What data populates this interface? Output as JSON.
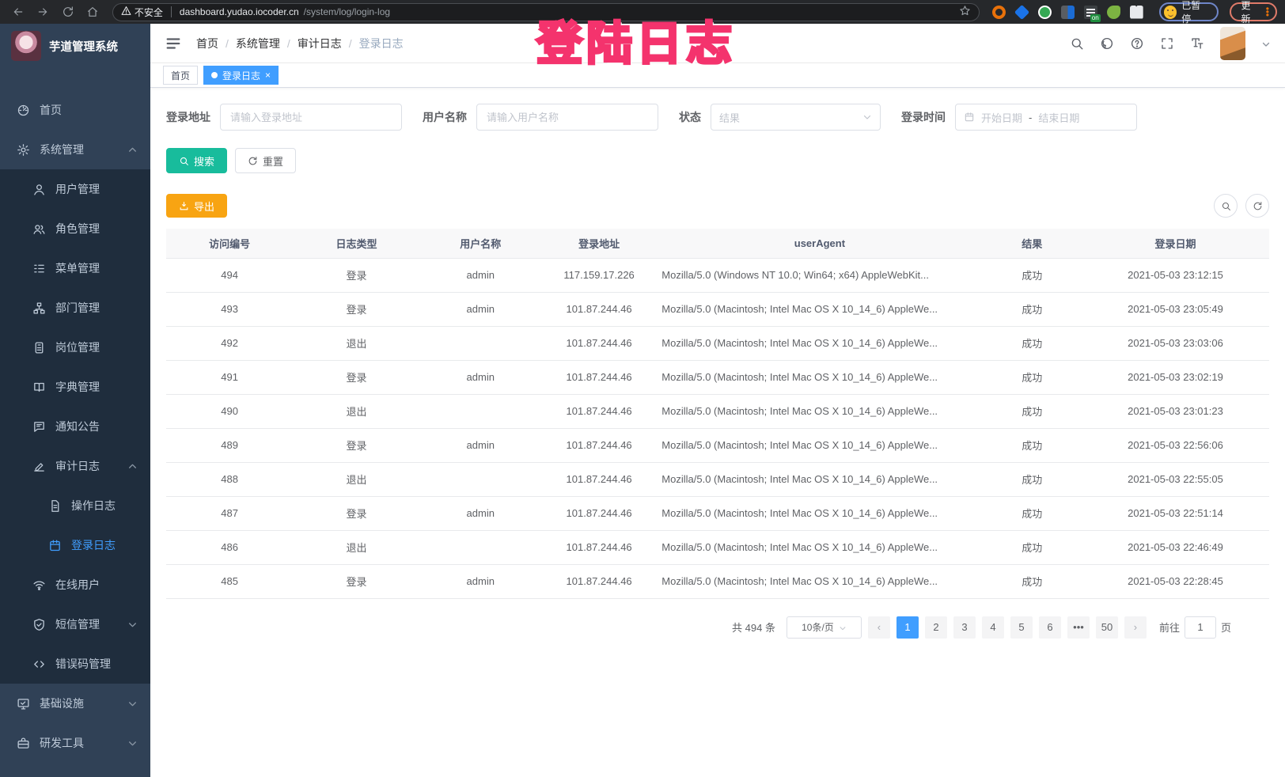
{
  "browser": {
    "security_label": "不安全",
    "url_host": "dashboard.yudao.iocoder.cn",
    "url_path": "/system/log/login-log",
    "extensions": [
      "orange-ring-extension-icon",
      "blue-gem-extension-icon",
      "green-circle-extension-icon",
      "grid-extension-icon",
      "list-on-extension-icon",
      "green-leaf-extension-icon",
      "puzzle-extension-icon"
    ],
    "paused_badge_label": "已暂停",
    "update_button_label": "更新"
  },
  "overlay_annotation": {
    "text": "登陆日志",
    "color": "#f4336d"
  },
  "sidebar": {
    "logo_title": "芋道管理系统",
    "items": [
      {
        "label": "首页",
        "icon": "dashboard-icon",
        "level": 1
      },
      {
        "label": "系统管理",
        "icon": "gear-icon",
        "level": 1,
        "chevron": "up"
      },
      {
        "label": "用户管理",
        "icon": "user-icon",
        "level": 2
      },
      {
        "label": "角色管理",
        "icon": "roles-icon",
        "level": 2
      },
      {
        "label": "菜单管理",
        "icon": "menu-tree-icon",
        "level": 2
      },
      {
        "label": "部门管理",
        "icon": "org-tree-icon",
        "level": 2
      },
      {
        "label": "岗位管理",
        "icon": "post-badge-icon",
        "level": 2
      },
      {
        "label": "字典管理",
        "icon": "dict-book-icon",
        "level": 2
      },
      {
        "label": "通知公告",
        "icon": "announcement-icon",
        "level": 2
      },
      {
        "label": "审计日志",
        "icon": "audit-log-icon",
        "level": 2,
        "chevron": "up"
      },
      {
        "label": "操作日志",
        "icon": "operation-log-icon",
        "level": 3
      },
      {
        "label": "登录日志",
        "icon": "login-log-icon",
        "level": 3,
        "active": true
      },
      {
        "label": "在线用户",
        "icon": "online-user-icon",
        "level": 2
      },
      {
        "label": "短信管理",
        "icon": "sms-shield-icon",
        "level": 2,
        "chevron": "down"
      },
      {
        "label": "错误码管理",
        "icon": "error-code-icon",
        "level": 2
      },
      {
        "label": "基础设施",
        "icon": "infra-monitor-icon",
        "level": 1,
        "chevron": "down"
      },
      {
        "label": "研发工具",
        "icon": "devtools-icon",
        "level": 1,
        "chevron": "down"
      }
    ]
  },
  "navbar": {
    "breadcrumb": [
      "首页",
      "系统管理",
      "审计日志",
      "登录日志"
    ],
    "right_icons": [
      "search-icon",
      "github-icon",
      "help-icon",
      "fullscreen-icon",
      "font-size-icon"
    ]
  },
  "tags": [
    {
      "label": "首页",
      "active": false,
      "closable": false
    },
    {
      "label": "登录日志",
      "active": true,
      "closable": true
    }
  ],
  "filters": {
    "login_address": {
      "label": "登录地址",
      "placeholder": "请输入登录地址"
    },
    "username": {
      "label": "用户名称",
      "placeholder": "请输入用户名称"
    },
    "status": {
      "label": "状态",
      "placeholder": "结果"
    },
    "login_time": {
      "label": "登录时间",
      "start_placeholder": "开始日期",
      "separator": "-",
      "end_placeholder": "结束日期"
    }
  },
  "actions": {
    "search_label": "搜索",
    "reset_label": "重置",
    "export_label": "导出"
  },
  "table": {
    "columns": [
      "访问编号",
      "日志类型",
      "用户名称",
      "登录地址",
      "userAgent",
      "结果",
      "登录日期"
    ],
    "rows": [
      [
        "494",
        "登录",
        "admin",
        "117.159.17.226",
        "Mozilla/5.0 (Windows NT 10.0; Win64; x64) AppleWebKit...",
        "成功",
        "2021-05-03 23:12:15"
      ],
      [
        "493",
        "登录",
        "admin",
        "101.87.244.46",
        "Mozilla/5.0 (Macintosh; Intel Mac OS X 10_14_6) AppleWe...",
        "成功",
        "2021-05-03 23:05:49"
      ],
      [
        "492",
        "退出",
        "",
        "101.87.244.46",
        "Mozilla/5.0 (Macintosh; Intel Mac OS X 10_14_6) AppleWe...",
        "成功",
        "2021-05-03 23:03:06"
      ],
      [
        "491",
        "登录",
        "admin",
        "101.87.244.46",
        "Mozilla/5.0 (Macintosh; Intel Mac OS X 10_14_6) AppleWe...",
        "成功",
        "2021-05-03 23:02:19"
      ],
      [
        "490",
        "退出",
        "",
        "101.87.244.46",
        "Mozilla/5.0 (Macintosh; Intel Mac OS X 10_14_6) AppleWe...",
        "成功",
        "2021-05-03 23:01:23"
      ],
      [
        "489",
        "登录",
        "admin",
        "101.87.244.46",
        "Mozilla/5.0 (Macintosh; Intel Mac OS X 10_14_6) AppleWe...",
        "成功",
        "2021-05-03 22:56:06"
      ],
      [
        "488",
        "退出",
        "",
        "101.87.244.46",
        "Mozilla/5.0 (Macintosh; Intel Mac OS X 10_14_6) AppleWe...",
        "成功",
        "2021-05-03 22:55:05"
      ],
      [
        "487",
        "登录",
        "admin",
        "101.87.244.46",
        "Mozilla/5.0 (Macintosh; Intel Mac OS X 10_14_6) AppleWe...",
        "成功",
        "2021-05-03 22:51:14"
      ],
      [
        "486",
        "退出",
        "",
        "101.87.244.46",
        "Mozilla/5.0 (Macintosh; Intel Mac OS X 10_14_6) AppleWe...",
        "成功",
        "2021-05-03 22:46:49"
      ],
      [
        "485",
        "登录",
        "admin",
        "101.87.244.46",
        "Mozilla/5.0 (Macintosh; Intel Mac OS X 10_14_6) AppleWe...",
        "成功",
        "2021-05-03 22:28:45"
      ]
    ]
  },
  "pagination": {
    "total_text": "共 494 条",
    "page_size_label": "10条/页",
    "pages": [
      "1",
      "2",
      "3",
      "4",
      "5",
      "6",
      "•••",
      "50"
    ],
    "active_page": "1",
    "goto_label": "前往",
    "goto_value": "1",
    "page_suffix_label": "页"
  },
  "theme": {
    "accent_blue": "#409eff",
    "sidebar_bg": "#304156",
    "submenu_bg": "#1f2d3d",
    "search_button": "#18bc9c",
    "export_button": "#f8a412",
    "annotation_pink": "#f4336d"
  }
}
